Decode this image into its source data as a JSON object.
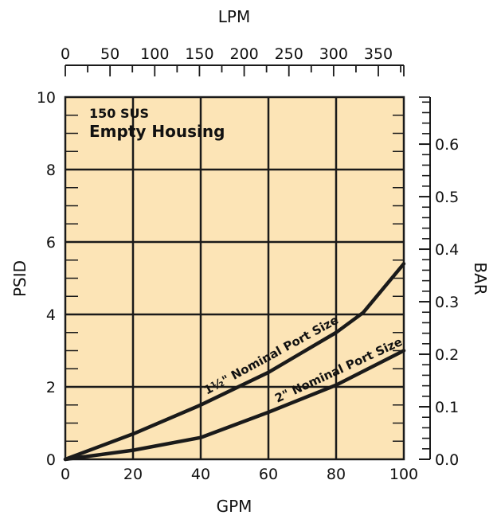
{
  "chart_data": {
    "type": "line",
    "xlabel": "GPM",
    "ylabel": "PSID",
    "top_axis_label": "LPM",
    "right_axis_label": "BAR",
    "xlim": [
      0,
      100
    ],
    "ylim": [
      0,
      10
    ],
    "top_xlim": [
      0,
      378.5
    ],
    "right_ylim": [
      0,
      0.6895
    ],
    "x_ticks": [
      "0",
      "20",
      "40",
      "60",
      "80",
      "100"
    ],
    "y_ticks": [
      "0",
      "2",
      "4",
      "6",
      "8",
      "10"
    ],
    "top_ticks": [
      "0",
      "50",
      "100",
      "150",
      "200",
      "250",
      "300",
      "350"
    ],
    "right_ticks": [
      "0.0",
      "0.1",
      "0.2",
      "0.3",
      "0.4",
      "0.5",
      "0.6"
    ],
    "grid": true,
    "background_color": "#fce4b6",
    "line_color": "#1a1a1a",
    "annotations": {
      "line1": "150 SUS",
      "line2": "Empty Housing"
    },
    "series": [
      {
        "name": "1½\" Nominal Port Size",
        "x": [
          0,
          20,
          40,
          60,
          80,
          88,
          100
        ],
        "y": [
          0,
          0.7,
          1.5,
          2.4,
          3.5,
          4.05,
          5.4
        ]
      },
      {
        "name": "2\" Nominal Port Size",
        "x": [
          0,
          20,
          40,
          60,
          80,
          100
        ],
        "y": [
          0,
          0.25,
          0.6,
          1.3,
          2.05,
          3.0
        ]
      }
    ]
  }
}
